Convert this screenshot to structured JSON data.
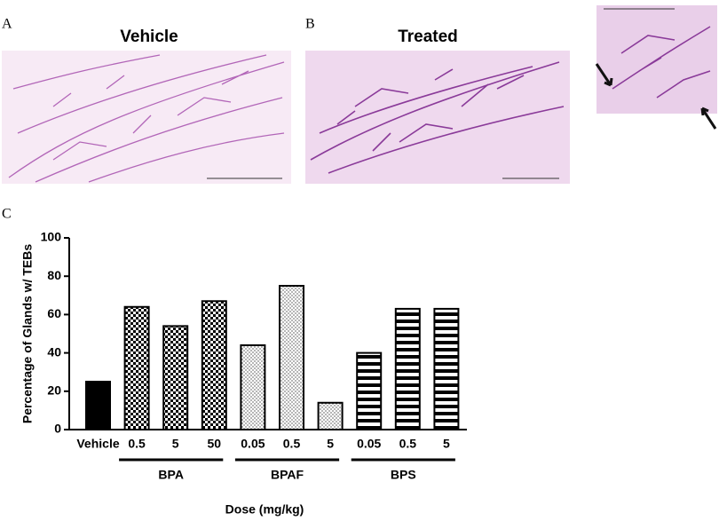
{
  "panels": [
    {
      "label": "A",
      "title": "Vehicle"
    },
    {
      "label": "B",
      "title": "Treated"
    },
    {
      "label": "C"
    }
  ],
  "chart_data": {
    "type": "bar",
    "y_label": "Percentage of Glands w/ TEBs",
    "x_label": "Dose (mg/kg)",
    "categories": [
      "Vehicle",
      "0.5",
      "5",
      "50",
      "0.05",
      "0.5",
      "5",
      "0.05",
      "0.5",
      "5"
    ],
    "values": [
      25,
      64,
      54,
      67,
      44,
      75,
      14,
      40,
      63,
      63
    ],
    "patterns": [
      "solid",
      "checker",
      "checker",
      "checker",
      "dots",
      "dots",
      "dots",
      "stripes",
      "stripes",
      "stripes"
    ],
    "groups": [
      "BPA",
      "BPAF",
      "BPS"
    ],
    "ylim": [
      0,
      100
    ],
    "yticks": [
      0,
      20,
      40,
      60,
      80,
      100
    ],
    "grid": false
  }
}
